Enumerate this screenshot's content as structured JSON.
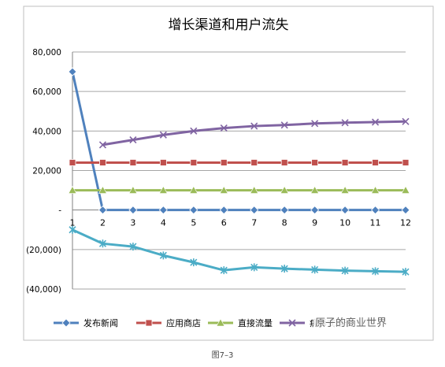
{
  "chart_data": {
    "type": "line",
    "title": "增长渠道和用户流失",
    "x": [
      "1",
      "2",
      "3",
      "4",
      "5",
      "6",
      "7",
      "8",
      "9",
      "10",
      "11",
      "12"
    ],
    "ylim": [
      -40000,
      80000
    ],
    "yticks": [
      "80,000",
      "60,000",
      "40,000",
      "20,000",
      "-",
      "(20,000)",
      "(40,000)"
    ],
    "ytick_values": [
      80000,
      60000,
      40000,
      20000,
      0,
      -20000,
      -40000
    ],
    "grid": "horizontal",
    "legend_position": "bottom",
    "series": [
      {
        "name": "发布新闻",
        "color": "#4F81BD",
        "marker": "diamond",
        "values": [
          70000,
          0,
          0,
          0,
          0,
          0,
          0,
          0,
          0,
          0,
          0,
          0
        ]
      },
      {
        "name": "应用商店",
        "color": "#C0504D",
        "marker": "square",
        "values": [
          24000,
          24000,
          24000,
          24000,
          24000,
          24000,
          24000,
          24000,
          24000,
          24000,
          24000,
          24000
        ]
      },
      {
        "name": "直接流量",
        "color": "#9BBB59",
        "marker": "triangle",
        "values": [
          10000,
          10000,
          10000,
          10000,
          10000,
          10000,
          10000,
          10000,
          10000,
          10000,
          10000,
          10000
        ]
      },
      {
        "name": "病毒式增长",
        "color": "#8064A2",
        "marker": "x",
        "values": [
          null,
          33000,
          35500,
          38000,
          40000,
          41500,
          42500,
          43000,
          43800,
          44200,
          44500,
          44800
        ]
      },
      {
        "name": "",
        "color": "#4BACC6",
        "marker": "asterisk",
        "values": [
          -10000,
          -17000,
          -18500,
          -23000,
          -26500,
          -30500,
          -29000,
          -29700,
          -30200,
          -30700,
          -31000,
          -31300
        ]
      }
    ]
  },
  "caption": "图7–3",
  "watermark": "原子的商业世界"
}
